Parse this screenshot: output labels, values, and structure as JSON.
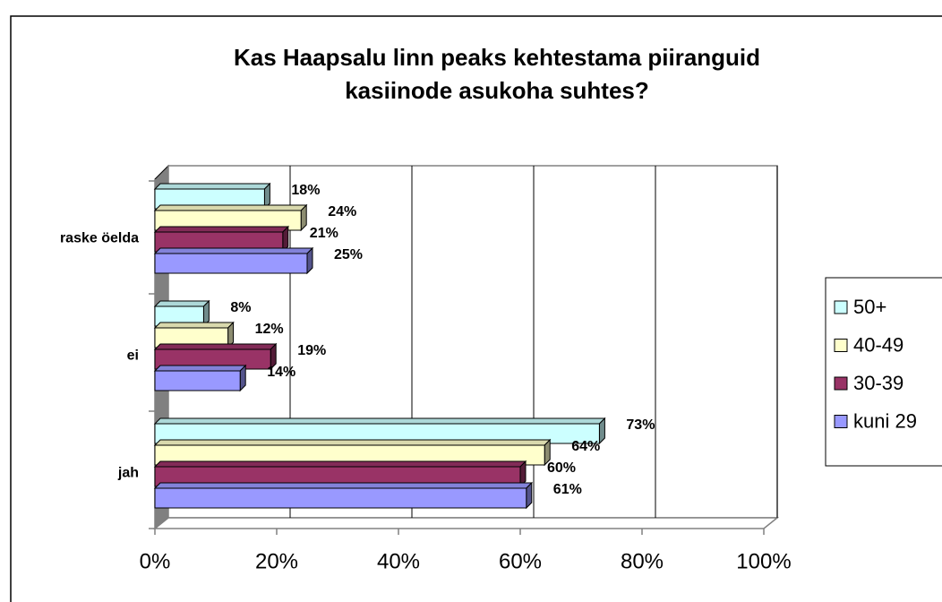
{
  "chart_data": {
    "type": "bar3d_horizontal",
    "title": [
      "Kas Haapsalu linn peaks kehtestama piiranguid",
      "kasiinode asukoha suhtes?"
    ],
    "categories": [
      "raske öelda",
      "ei",
      "jah"
    ],
    "series": [
      {
        "name": "50+",
        "color": "#ccffff",
        "values": [
          18,
          8,
          73
        ],
        "value_labels": [
          "18%",
          "8%",
          "73%"
        ]
      },
      {
        "name": "40-49",
        "color": "#ffffcc",
        "values": [
          24,
          12,
          64
        ],
        "value_labels": [
          "24%",
          "12%",
          "64%"
        ]
      },
      {
        "name": "30-39",
        "color": "#993366",
        "values": [
          21,
          19,
          60
        ],
        "value_labels": [
          "21%",
          "19%",
          "60%"
        ]
      },
      {
        "name": "kuni 29",
        "color": "#9999ff",
        "values": [
          25,
          14,
          61
        ],
        "value_labels": [
          "25%",
          "14%",
          "61%"
        ]
      }
    ],
    "xlim": [
      0,
      100
    ],
    "xticks": [
      {
        "value": 0,
        "label": "0%"
      },
      {
        "value": 20,
        "label": "20%"
      },
      {
        "value": 40,
        "label": "40%"
      },
      {
        "value": 60,
        "label": "60%"
      },
      {
        "value": 80,
        "label": "80%"
      },
      {
        "value": 100,
        "label": "100%"
      }
    ],
    "grid": true,
    "legend": "right"
  }
}
